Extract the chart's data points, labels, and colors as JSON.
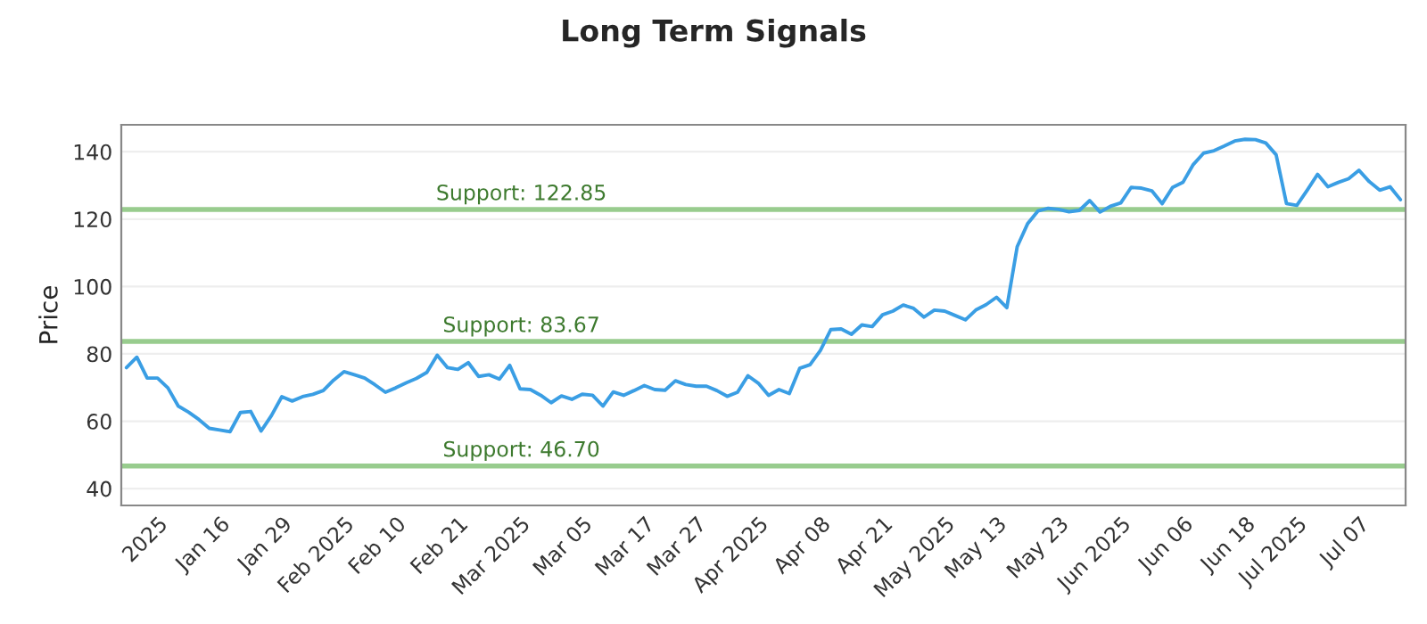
{
  "chart_data": {
    "type": "line",
    "title": "Long Term Signals",
    "ylabel": "Price",
    "categories": [
      null,
      null,
      null,
      "2025",
      null,
      null,
      null,
      null,
      null,
      "Jan 16",
      null,
      null,
      null,
      null,
      null,
      "Jan 29",
      null,
      null,
      null,
      null,
      null,
      "Feb 2025",
      null,
      null,
      null,
      null,
      "Feb 10",
      null,
      null,
      null,
      null,
      null,
      "Feb 21",
      null,
      null,
      null,
      null,
      null,
      "Mar 2025",
      null,
      null,
      null,
      null,
      null,
      "Mar 05",
      null,
      null,
      null,
      null,
      null,
      "Mar 17",
      null,
      null,
      null,
      null,
      "Mar 27",
      null,
      null,
      null,
      null,
      null,
      "Apr 2025",
      null,
      null,
      null,
      null,
      null,
      "Apr 08",
      null,
      null,
      null,
      null,
      null,
      "Apr 21",
      null,
      null,
      null,
      null,
      null,
      "May 2025",
      null,
      null,
      null,
      null,
      "May 13",
      null,
      null,
      null,
      null,
      null,
      "May 23",
      null,
      null,
      null,
      null,
      null,
      "Jun 2025",
      null,
      null,
      null,
      null,
      null,
      "Jun 06",
      null,
      null,
      null,
      null,
      null,
      "Jun 18",
      null,
      null,
      null,
      null,
      "Jul 2025",
      null,
      null,
      null,
      null,
      null,
      "Jul 07",
      null,
      null,
      null,
      null
    ],
    "series": [
      {
        "color": "#3a9ee4",
        "values": [
          75.9,
          79,
          72.8,
          72.8,
          69.9,
          64.5,
          62.7,
          60.5,
          57.9,
          57.4,
          56.9,
          62.6,
          62.9,
          57.1,
          61.7,
          67.3,
          66,
          67.3,
          68,
          69.1,
          72.2,
          74.7,
          73.8,
          72.8,
          70.8,
          68.6,
          69.9,
          71.4,
          72.7,
          74.5,
          79.6,
          75.9,
          75.4,
          77.4,
          73.3,
          73.8,
          72.5,
          76.6,
          69.6,
          69.4,
          67.7,
          65.5,
          67.5,
          66.5,
          68,
          67.7,
          64.5,
          68.7,
          67.7,
          69.1,
          70.6,
          69.4,
          69.2,
          72,
          70.9,
          70.4,
          70.4,
          69.1,
          67.4,
          68.6,
          73.5,
          71.3,
          67.7,
          69.4,
          68.2,
          75.7,
          76.8,
          81,
          87.2,
          87.4,
          85.8,
          88.6,
          88.1,
          91.6,
          92.7,
          94.5,
          93.5,
          90.9,
          93,
          92.7,
          91.4,
          90.1,
          93,
          94.6,
          96.8,
          93.7,
          111.8,
          118.6,
          122.4,
          123.2,
          122.9,
          122.2,
          122.6,
          125.5,
          122.1,
          123.8,
          124.8,
          129.4,
          129.2,
          128.4,
          124.6,
          129.4,
          130.9,
          136.2,
          139.6,
          140.3,
          141.7,
          143.2,
          143.7,
          143.6,
          142.6,
          139.1,
          124.6,
          124.1,
          128.6,
          133.3,
          129.6,
          130.9,
          132,
          134.5,
          131.1,
          128.6,
          129.6,
          125.8
        ]
      }
    ],
    "ylim": [
      35,
      148
    ],
    "yticks": [
      40,
      60,
      80,
      100,
      120,
      140
    ],
    "grid": "y",
    "marker": "none",
    "line_style": "solid",
    "ref_lines": [
      {
        "axis": "y",
        "value": 122.85,
        "label": "Support: 122.85",
        "color": "#98cc8e"
      },
      {
        "axis": "y",
        "value": 83.67,
        "label": "Support: 83.67",
        "color": "#98cc8e"
      },
      {
        "axis": "y",
        "value": 46.7,
        "label": "Support: 46.70",
        "color": "#98cc8e"
      }
    ]
  }
}
